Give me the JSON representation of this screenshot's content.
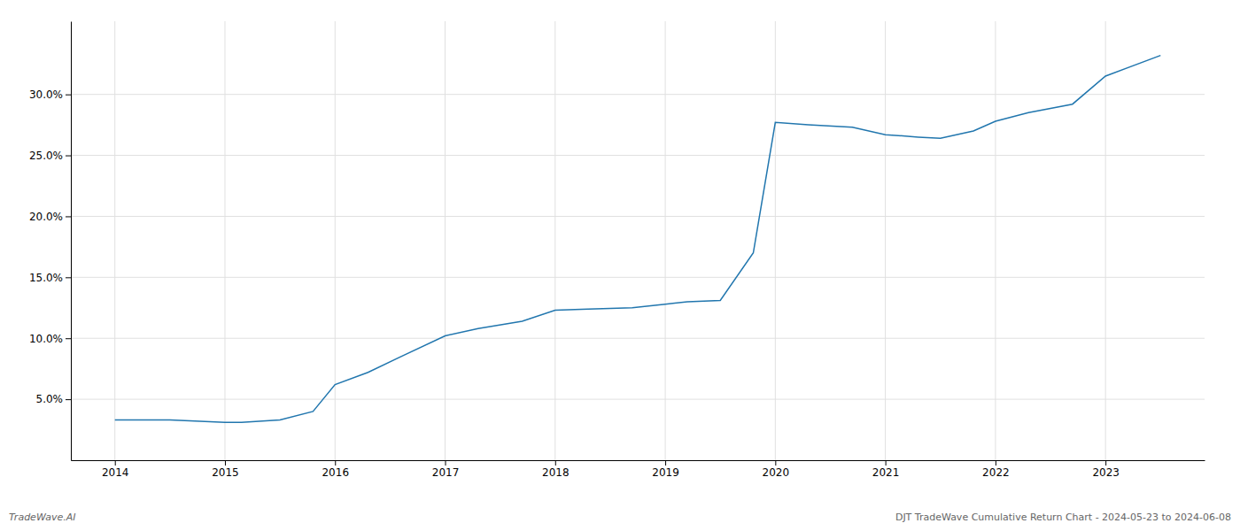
{
  "chart_data": {
    "type": "line",
    "x": [
      2014,
      2014.5,
      2015,
      2015.15,
      2015.5,
      2015.8,
      2016,
      2016.3,
      2016.6,
      2017,
      2017.3,
      2017.7,
      2018,
      2018.3,
      2018.7,
      2019,
      2019.2,
      2019.5,
      2019.8,
      2020,
      2020.3,
      2020.7,
      2021,
      2021.3,
      2021.5,
      2021.8,
      2022,
      2022.3,
      2022.7,
      2023,
      2023.5
    ],
    "values": [
      3.3,
      3.3,
      3.1,
      3.1,
      3.3,
      4.0,
      6.2,
      7.2,
      8.5,
      10.2,
      10.8,
      11.4,
      12.3,
      12.4,
      12.5,
      12.8,
      13.0,
      13.1,
      17.0,
      27.7,
      27.5,
      27.3,
      26.7,
      26.5,
      26.4,
      27.0,
      27.8,
      28.5,
      29.2,
      31.5,
      33.2
    ],
    "color": "#2176ae",
    "xlim": [
      2013.6,
      2023.9
    ],
    "ylim": [
      0,
      36
    ],
    "xticks": [
      2014,
      2015,
      2016,
      2017,
      2018,
      2019,
      2020,
      2021,
      2022,
      2023
    ],
    "yticks": [
      {
        "value": 5.0,
        "label": "5.0%"
      },
      {
        "value": 10.0,
        "label": "10.0%"
      },
      {
        "value": 15.0,
        "label": "15.0%"
      },
      {
        "value": 20.0,
        "label": "20.0%"
      },
      {
        "value": 25.0,
        "label": "25.0%"
      },
      {
        "value": 30.0,
        "label": "30.0%"
      }
    ],
    "grid": true,
    "annotations": [
      "TradeWave.AI",
      "DJT TradeWave Cumulative Return Chart - 2024-05-23 to 2024-06-08"
    ]
  }
}
